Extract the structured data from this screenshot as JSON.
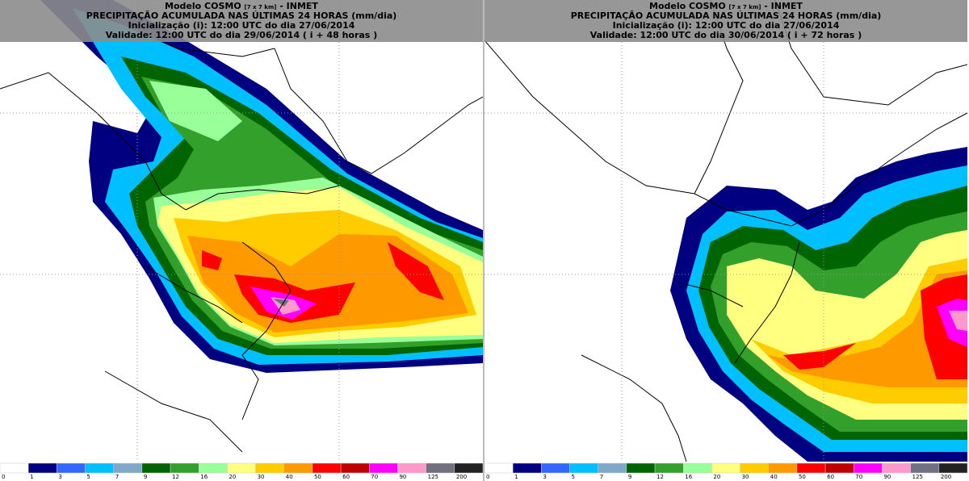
{
  "panels": [
    {
      "header": {
        "model": "Modelo COSMO",
        "resolution": "[7 x 7 km]",
        "source": "- INMET",
        "title": "PRECIPITAÇÃO ACUMULADA NAS ÚLTIMAS 24 HORAS (mm/dia)",
        "initialization": "Inicialização (i): 12:00 UTC do dia 27/06/2014",
        "validity": "Validade: 12:00 UTC do dia 29/06/2014 ( i + 48 horas )"
      },
      "legend": {
        "labels": [
          0,
          1,
          3,
          5,
          7,
          9,
          12,
          16,
          20,
          30,
          40,
          50,
          60,
          70,
          90,
          125,
          200
        ]
      }
    },
    {
      "header": {
        "model": "Modelo COSMO",
        "resolution": "[7 x 7 km]",
        "source": "- INMET",
        "title": "PRECIPITAÇÃO ACUMULADA NAS ÚLTIMAS 24 HORAS (mm/dia)",
        "initialization": "Inicialização (i): 12:00 UTC do dia 27/06/2014",
        "validity": "Validade: 12:00 UTC do dia 30/06/2014 ( i + 72 horas )"
      },
      "legend": {
        "labels": [
          0,
          1,
          3,
          5,
          7,
          9,
          12,
          16,
          20,
          30,
          40,
          50,
          60,
          70,
          90,
          125,
          200
        ]
      }
    }
  ],
  "legend_colors": [
    "#ffffff",
    "#000080",
    "#3366ff",
    "#00bfff",
    "#80a8c8",
    "#006400",
    "#33a02c",
    "#99ff99",
    "#ffff80",
    "#ffcc00",
    "#ff9900",
    "#ff0000",
    "#c00000",
    "#ff00ff",
    "#ff99cc",
    "#707080",
    "#222222"
  ]
}
